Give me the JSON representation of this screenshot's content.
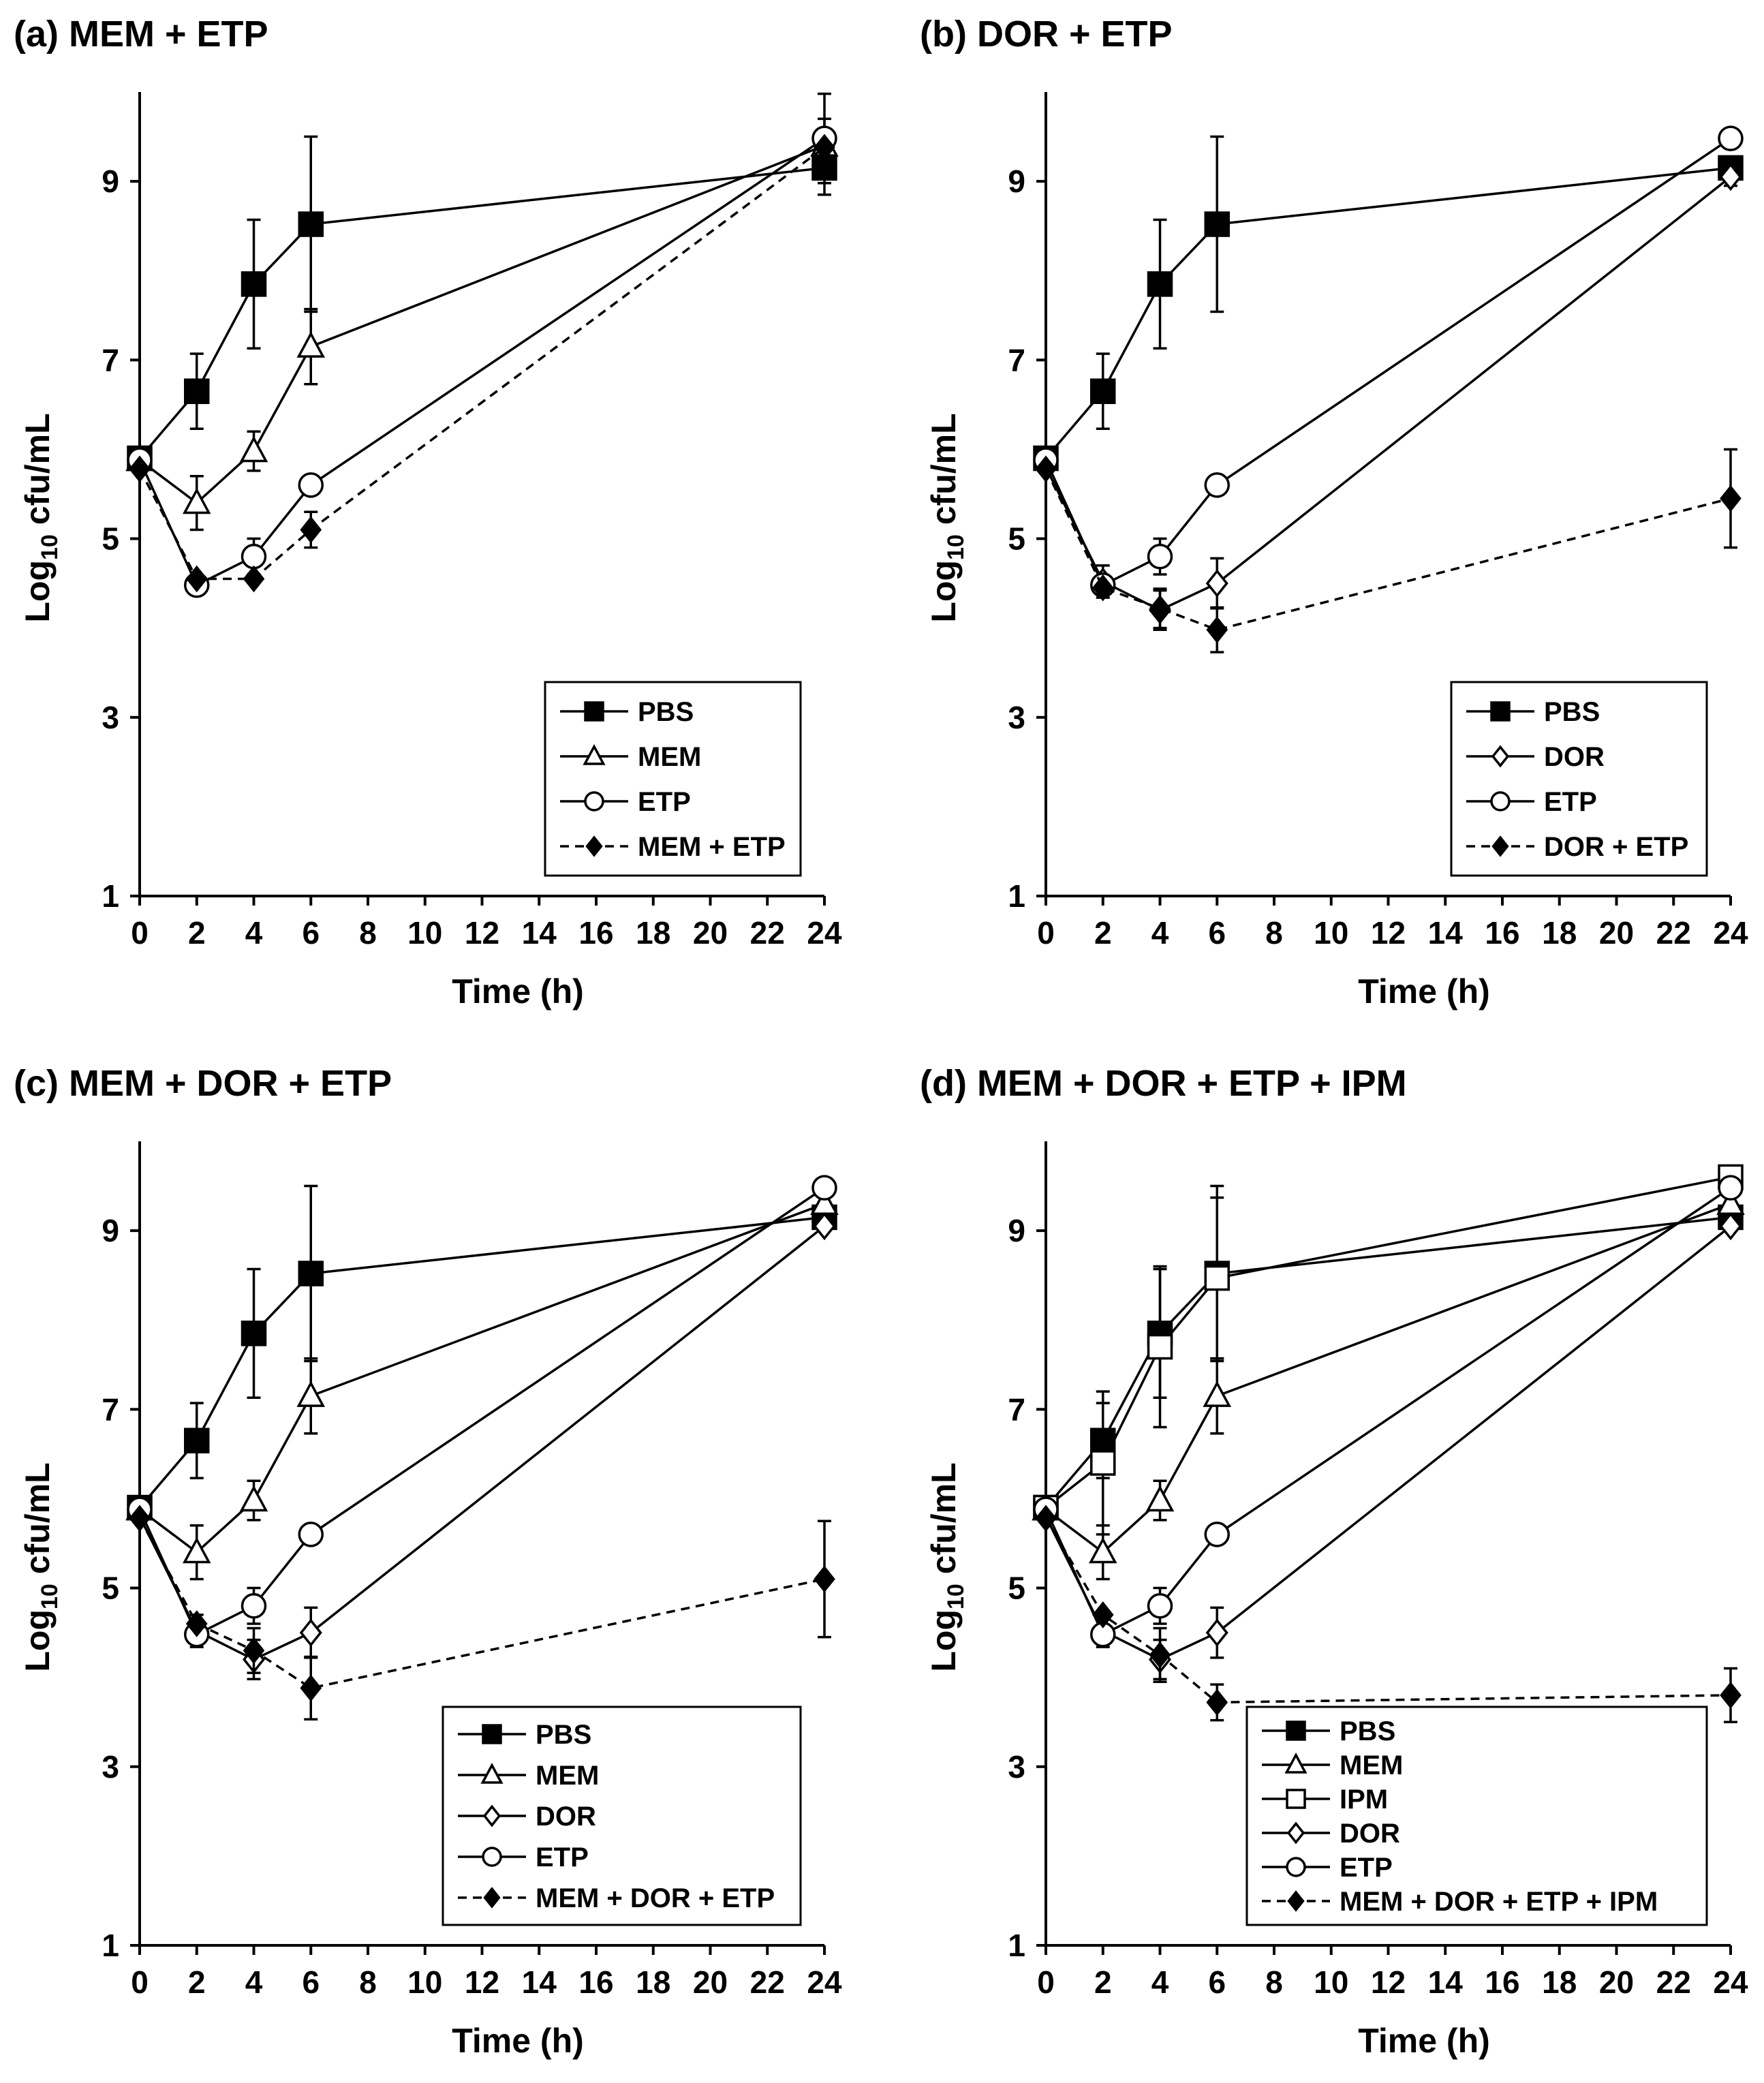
{
  "figure": {
    "y_axis_label_main": "Log",
    "y_axis_label_sub": "10",
    "y_axis_label_rest": " cfu/mL",
    "x_axis_label": "Time (h)"
  },
  "chart_data": [
    {
      "type": "line",
      "panel": "a",
      "title": "(a) MEM + ETP",
      "xlabel": "Time (h)",
      "ylabel": "Log10 cfu/mL",
      "xlim": [
        0,
        24
      ],
      "ylim": [
        1,
        10
      ],
      "xticks": [
        0,
        2,
        4,
        6,
        8,
        10,
        12,
        14,
        16,
        18,
        20,
        22,
        24
      ],
      "yticks": [
        1,
        3,
        5,
        7,
        9
      ],
      "legend_position": "bottom-right",
      "series": [
        {
          "name": "PBS",
          "marker": "square-filled",
          "dashed": false,
          "x": [
            0,
            2,
            4,
            6,
            24
          ],
          "y": [
            5.9,
            6.65,
            7.85,
            8.52,
            9.15
          ],
          "err": [
            null,
            0.42,
            0.72,
            0.98,
            0.3
          ]
        },
        {
          "name": "MEM",
          "marker": "triangle-open",
          "dashed": false,
          "x": [
            0,
            2,
            4,
            6,
            24
          ],
          "y": [
            5.88,
            5.4,
            5.98,
            7.15,
            9.4
          ],
          "err": [
            null,
            0.3,
            0.22,
            0.42,
            0.3
          ]
        },
        {
          "name": "ETP",
          "marker": "circle-open",
          "dashed": false,
          "x": [
            0,
            2,
            4,
            6,
            24
          ],
          "y": [
            5.88,
            4.48,
            4.8,
            5.6,
            9.48
          ],
          "err": [
            null,
            0.1,
            0.2,
            null,
            0.5
          ]
        },
        {
          "name": "MEM + ETP",
          "marker": "diamond-filled",
          "dashed": true,
          "x": [
            0,
            2,
            4,
            6,
            24
          ],
          "y": [
            5.78,
            4.55,
            4.55,
            5.1,
            9.38
          ],
          "err": [
            null,
            null,
            null,
            0.2,
            null
          ]
        }
      ]
    },
    {
      "type": "line",
      "panel": "b",
      "title": "(b) DOR + ETP",
      "xlabel": "Time (h)",
      "ylabel": "Log10 cfu/mL",
      "xlim": [
        0,
        24
      ],
      "ylim": [
        1,
        10
      ],
      "xticks": [
        0,
        2,
        4,
        6,
        8,
        10,
        12,
        14,
        16,
        18,
        20,
        22,
        24
      ],
      "yticks": [
        1,
        3,
        5,
        7,
        9
      ],
      "legend_position": "bottom-right",
      "series": [
        {
          "name": "PBS",
          "marker": "square-filled",
          "dashed": false,
          "x": [
            0,
            2,
            4,
            6,
            24
          ],
          "y": [
            5.9,
            6.65,
            7.85,
            8.52,
            9.15
          ],
          "err": [
            null,
            0.42,
            0.72,
            0.98,
            null
          ]
        },
        {
          "name": "DOR",
          "marker": "diamond-open",
          "dashed": false,
          "x": [
            0,
            2,
            4,
            6,
            24
          ],
          "y": [
            5.8,
            4.52,
            4.2,
            4.5,
            9.05
          ],
          "err": [
            null,
            0.18,
            0.22,
            0.28,
            0.1
          ]
        },
        {
          "name": "ETP",
          "marker": "circle-open",
          "dashed": false,
          "x": [
            0,
            2,
            4,
            6,
            24
          ],
          "y": [
            5.88,
            4.48,
            4.8,
            5.6,
            9.48
          ],
          "err": [
            null,
            0.1,
            0.2,
            null,
            null
          ]
        },
        {
          "name": "DOR + ETP",
          "marker": "diamond-filled",
          "dashed": true,
          "x": [
            0,
            2,
            4,
            6,
            24
          ],
          "y": [
            5.78,
            4.45,
            4.22,
            3.98,
            5.45
          ],
          "err": [
            null,
            null,
            0.22,
            0.25,
            0.55
          ]
        }
      ]
    },
    {
      "type": "line",
      "panel": "c",
      "title": "(c) MEM + DOR + ETP",
      "xlabel": "Time (h)",
      "ylabel": "Log10 cfu/mL",
      "xlim": [
        0,
        24
      ],
      "ylim": [
        1,
        10
      ],
      "xticks": [
        0,
        2,
        4,
        6,
        8,
        10,
        12,
        14,
        16,
        18,
        20,
        22,
        24
      ],
      "yticks": [
        1,
        3,
        5,
        7,
        9
      ],
      "legend_position": "bottom-right",
      "series": [
        {
          "name": "PBS",
          "marker": "square-filled",
          "dashed": false,
          "x": [
            0,
            2,
            4,
            6,
            24
          ],
          "y": [
            5.9,
            6.65,
            7.85,
            8.52,
            9.15
          ],
          "err": [
            null,
            0.42,
            0.72,
            0.98,
            null
          ]
        },
        {
          "name": "MEM",
          "marker": "triangle-open",
          "dashed": false,
          "x": [
            0,
            2,
            4,
            6,
            24
          ],
          "y": [
            5.88,
            5.4,
            5.98,
            7.15,
            9.3
          ],
          "err": [
            null,
            0.3,
            0.22,
            0.42,
            null
          ]
        },
        {
          "name": "DOR",
          "marker": "diamond-open",
          "dashed": false,
          "x": [
            0,
            2,
            4,
            6,
            24
          ],
          "y": [
            5.8,
            4.52,
            4.2,
            4.5,
            9.05
          ],
          "err": [
            null,
            0.18,
            0.22,
            0.28,
            null
          ]
        },
        {
          "name": "ETP",
          "marker": "circle-open",
          "dashed": false,
          "x": [
            0,
            2,
            4,
            6,
            24
          ],
          "y": [
            5.88,
            4.48,
            4.8,
            5.6,
            9.48
          ],
          "err": [
            null,
            0.1,
            0.2,
            null,
            null
          ]
        },
        {
          "name": "MEM + DOR + ETP",
          "marker": "diamond-filled",
          "dashed": true,
          "x": [
            0,
            2,
            4,
            6,
            24
          ],
          "y": [
            5.78,
            4.6,
            4.3,
            3.88,
            5.1
          ],
          "err": [
            null,
            null,
            0.25,
            0.35,
            0.65
          ]
        }
      ]
    },
    {
      "type": "line",
      "panel": "d",
      "title": "(d) MEM + DOR + ETP + IPM",
      "xlabel": "Time (h)",
      "ylabel": "Log10 cfu/mL",
      "xlim": [
        0,
        24
      ],
      "ylim": [
        1,
        10
      ],
      "xticks": [
        0,
        2,
        4,
        6,
        8,
        10,
        12,
        14,
        16,
        18,
        20,
        22,
        24
      ],
      "yticks": [
        1,
        3,
        5,
        7,
        9
      ],
      "legend_position": "bottom-right",
      "series": [
        {
          "name": "PBS",
          "marker": "square-filled",
          "dashed": false,
          "x": [
            0,
            2,
            4,
            6,
            24
          ],
          "y": [
            5.9,
            6.65,
            7.85,
            8.52,
            9.15
          ],
          "err": [
            null,
            0.42,
            0.72,
            0.98,
            null
          ]
        },
        {
          "name": "MEM",
          "marker": "triangle-open",
          "dashed": false,
          "x": [
            0,
            2,
            4,
            6,
            24
          ],
          "y": [
            5.88,
            5.4,
            5.98,
            7.15,
            9.3
          ],
          "err": [
            null,
            0.3,
            0.22,
            0.42,
            null
          ]
        },
        {
          "name": "IPM",
          "marker": "square-open",
          "dashed": false,
          "x": [
            0,
            2,
            4,
            6,
            24
          ],
          "y": [
            5.9,
            6.4,
            7.7,
            8.47,
            9.6
          ],
          "err": [
            null,
            0.8,
            0.9,
            0.9,
            null
          ]
        },
        {
          "name": "DOR",
          "marker": "diamond-open",
          "dashed": false,
          "x": [
            0,
            2,
            4,
            6,
            24
          ],
          "y": [
            5.8,
            4.52,
            4.2,
            4.5,
            9.05
          ],
          "err": [
            null,
            0.18,
            0.22,
            0.28,
            null
          ]
        },
        {
          "name": "ETP",
          "marker": "circle-open",
          "dashed": false,
          "x": [
            0,
            2,
            4,
            6,
            24
          ],
          "y": [
            5.88,
            4.48,
            4.8,
            5.6,
            9.48
          ],
          "err": [
            null,
            0.1,
            0.2,
            null,
            null
          ]
        },
        {
          "name": "MEM + DOR + ETP + IPM",
          "marker": "diamond-filled",
          "dashed": true,
          "x": [
            0,
            2,
            4,
            6,
            24
          ],
          "y": [
            5.78,
            4.7,
            4.25,
            3.72,
            3.8
          ],
          "err": [
            null,
            null,
            0.3,
            0.2,
            0.3
          ]
        }
      ]
    }
  ]
}
